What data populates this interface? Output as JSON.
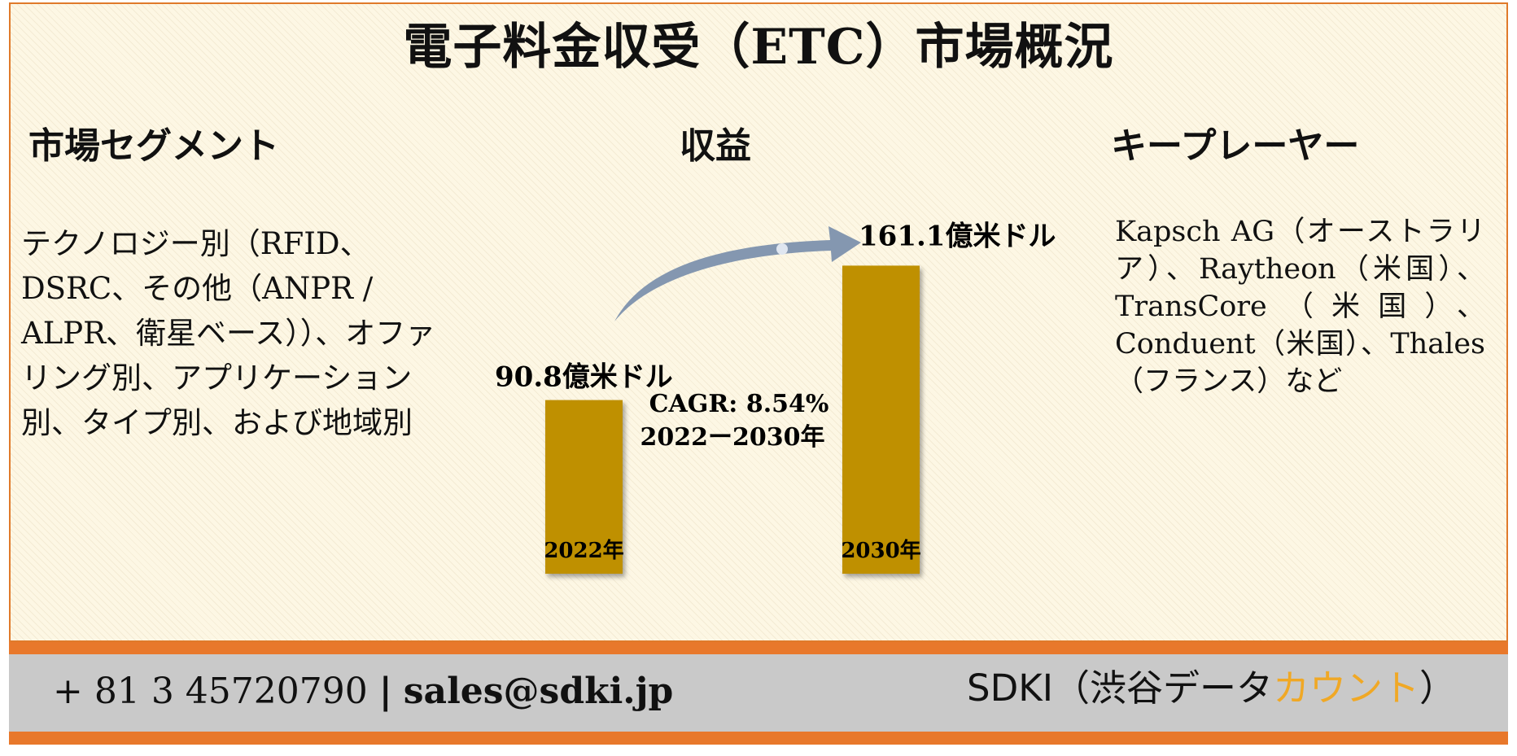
{
  "title": "電子料金収受（ETC）市場概況",
  "segments": {
    "heading": "市場セグメント",
    "text": "テクノロジー別（RFID、DSRC、その他（ANPR / ALPR、衛星ベース））、オファリング別、アプリケーション別、タイプ別、および地域別"
  },
  "revenue": {
    "heading": "収益",
    "cagr_line1": "CAGR: 8.54%",
    "cagr_line2": "2022ー2030年"
  },
  "key_players": {
    "heading": "キープレーヤー",
    "text": "Kapsch AG（オーストラリア）、Raytheon（米国）、TransCore（米国）、Conduent（米国）、Thales（フランス）など"
  },
  "chart_data": {
    "type": "bar",
    "categories": [
      "2022年",
      "2030年"
    ],
    "values": [
      90.8,
      161.1
    ],
    "value_labels": [
      "90.8億米ドル",
      "161.1億米ドル"
    ],
    "unit": "億米ドル",
    "bar_color": "#bf9000",
    "arrow_color": "#8497b0"
  },
  "footer": {
    "phone": "+ 81 3 45720790",
    "separator": "|",
    "email": "sales@sdki.jp",
    "brand_main": "SDKI（渋谷データ",
    "brand_accent": "カウント",
    "brand_end": "）"
  }
}
